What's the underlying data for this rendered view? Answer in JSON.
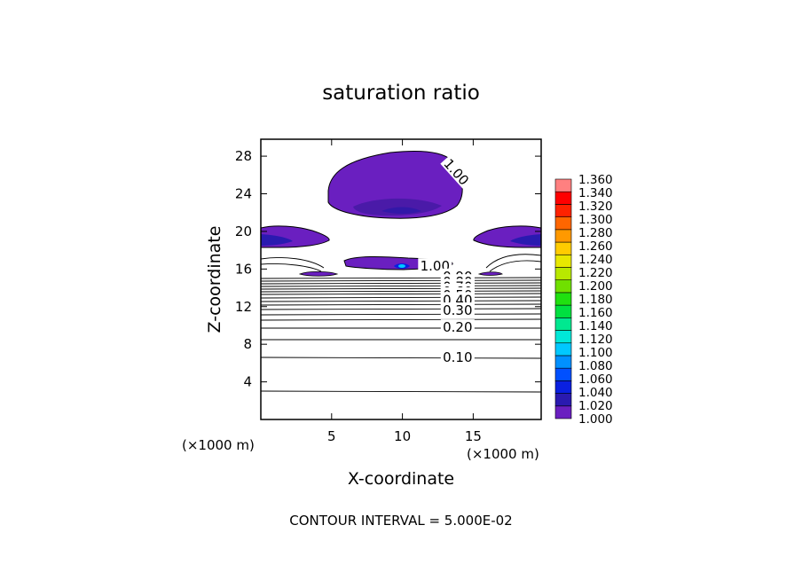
{
  "chart_data": {
    "type": "contour",
    "title": "saturation ratio",
    "xlabel": "X-coordinate",
    "ylabel": "Z-coordinate",
    "x_unit": "(×1000 m)",
    "y_unit": "(×1000 m)",
    "xlim": [
      0,
      19.8
    ],
    "ylim": [
      0,
      29.8
    ],
    "x_ticks": [
      5,
      10,
      15
    ],
    "y_ticks": [
      4,
      8,
      12,
      16,
      20,
      24,
      28
    ],
    "footer": "CONTOUR INTERVAL = 5.000E-02",
    "colorbar": {
      "levels": [
        1.0,
        1.02,
        1.04,
        1.06,
        1.08,
        1.1,
        1.12,
        1.14,
        1.16,
        1.18,
        1.2,
        1.22,
        1.24,
        1.26,
        1.28,
        1.3,
        1.32,
        1.34,
        1.36
      ],
      "labels": [
        "1.000",
        "1.020",
        "1.040",
        "1.060",
        "1.080",
        "1.100",
        "1.120",
        "1.140",
        "1.160",
        "1.180",
        "1.200",
        "1.220",
        "1.240",
        "1.260",
        "1.280",
        "1.300",
        "1.320",
        "1.340",
        "1.360"
      ],
      "colors": [
        "#6a1fc0",
        "#2a1ab0",
        "#0a20e0",
        "#0050ff",
        "#0090ff",
        "#00c8ff",
        "#00e8d8",
        "#00e890",
        "#00e040",
        "#20e010",
        "#70e000",
        "#b8e800",
        "#e8e800",
        "#ffcc00",
        "#ff9900",
        "#ff6600",
        "#ff2200",
        "#ff0000",
        "#ff8080"
      ]
    },
    "contour_labels": [
      {
        "text": "1.00",
        "x": 13.8,
        "z": 26.3
      },
      {
        "text": "1.00",
        "x": 12.3,
        "z": 16.3
      },
      {
        "text": "0.90",
        "x": 13.9,
        "z": 15.2
      },
      {
        "text": "0.80",
        "x": 13.9,
        "z": 14.6
      },
      {
        "text": "0.70",
        "x": 13.9,
        "z": 14.1
      },
      {
        "text": "0.60",
        "x": 13.9,
        "z": 13.6
      },
      {
        "text": "0.50",
        "x": 13.9,
        "z": 13.2
      },
      {
        "text": "0.40",
        "x": 13.9,
        "z": 12.7
      },
      {
        "text": "0.30",
        "x": 13.9,
        "z": 11.6
      },
      {
        "text": "0.20",
        "x": 13.9,
        "z": 9.8
      },
      {
        "text": "0.10",
        "x": 13.9,
        "z": 6.6
      }
    ]
  }
}
